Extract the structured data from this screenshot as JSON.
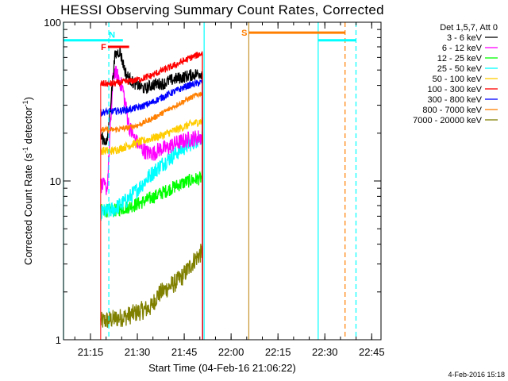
{
  "chart_data": {
    "type": "line",
    "title": "HESSI Observing Summary Count Rates, Corrected",
    "xlabel": "Start Time (04-Feb-16 21:06:22)",
    "ylabel": "Corrected Count Rate (s⁻¹ detector⁻¹)",
    "ylabel_parts": {
      "base": "Corrected Count Rate (s",
      "sup1": "-1",
      "mid": " detector",
      "sup2": "-1",
      "end": ")"
    },
    "timestamp": "4-Feb-2016 15:18",
    "x_unit": "minutes since 21:06:22",
    "xlim": [
      0,
      101.6
    ],
    "ylim": [
      1,
      100
    ],
    "y_scale": "log",
    "x_ticks": [
      {
        "label": "21:15",
        "x": 8.63
      },
      {
        "label": "21:30",
        "x": 23.63
      },
      {
        "label": "21:45",
        "x": 38.63
      },
      {
        "label": "22:00",
        "x": 53.63
      },
      {
        "label": "22:15",
        "x": 68.63
      },
      {
        "label": "22:30",
        "x": 83.63
      },
      {
        "label": "22:45",
        "x": 98.63
      }
    ],
    "y_ticks": [
      {
        "label": "1",
        "y": 1
      },
      {
        "label": "10",
        "y": 10
      },
      {
        "label": "100",
        "y": 100
      }
    ],
    "legend_title": "Det 1,5,7, Att 0",
    "legend_position": "right",
    "grid": false,
    "data_start": 11.9,
    "data_end": 44.5,
    "series": [
      {
        "name": "3 - 6 keV",
        "color": "#000000",
        "noise": 0.09,
        "points": [
          [
            11.9,
            19
          ],
          [
            14,
            17.5
          ],
          [
            15.2,
            33
          ],
          [
            16.5,
            62
          ],
          [
            18,
            66
          ],
          [
            20,
            47
          ],
          [
            22,
            42
          ],
          [
            24,
            40
          ],
          [
            26,
            38
          ],
          [
            28,
            40
          ],
          [
            30,
            41
          ],
          [
            32,
            41
          ],
          [
            34,
            43
          ],
          [
            36,
            44
          ],
          [
            38,
            45
          ],
          [
            40,
            46
          ],
          [
            42,
            47
          ],
          [
            44.5,
            48
          ]
        ]
      },
      {
        "name": "6 - 12 keV",
        "color": "#ff00ff",
        "noise": 0.12,
        "points": [
          [
            11.9,
            9.5
          ],
          [
            14,
            9
          ],
          [
            16,
            50
          ],
          [
            17.5,
            45
          ],
          [
            19,
            38
          ],
          [
            21,
            22
          ],
          [
            23,
            18
          ],
          [
            25,
            16
          ],
          [
            27,
            15
          ],
          [
            29,
            15
          ],
          [
            31,
            16
          ],
          [
            33,
            16
          ],
          [
            35,
            17
          ],
          [
            37,
            17.5
          ],
          [
            39,
            18
          ],
          [
            41,
            18.5
          ],
          [
            44.5,
            19
          ]
        ]
      },
      {
        "name": "12 - 25 keV",
        "color": "#00ff00",
        "noise": 0.1,
        "points": [
          [
            11.9,
            6.5
          ],
          [
            16,
            6.5
          ],
          [
            20,
            6.8
          ],
          [
            24,
            7.2
          ],
          [
            28,
            7.8
          ],
          [
            32,
            8.5
          ],
          [
            36,
            9.3
          ],
          [
            40,
            10
          ],
          [
            44.5,
            10.5
          ]
        ]
      },
      {
        "name": "25 - 50 keV",
        "color": "#00ffff",
        "noise": 0.12,
        "points": [
          [
            11.9,
            6.3
          ],
          [
            16,
            6.6
          ],
          [
            20,
            7.5
          ],
          [
            24,
            9
          ],
          [
            28,
            11
          ],
          [
            32,
            13
          ],
          [
            36,
            15
          ],
          [
            40,
            17
          ],
          [
            44.5,
            19
          ]
        ]
      },
      {
        "name": "50 - 100 keV",
        "color": "#ffcc00",
        "noise": 0.06,
        "points": [
          [
            11.9,
            15.5
          ],
          [
            16,
            15.5
          ],
          [
            20,
            16.5
          ],
          [
            24,
            17.5
          ],
          [
            28,
            18.5
          ],
          [
            32,
            19.5
          ],
          [
            36,
            21
          ],
          [
            40,
            22.5
          ],
          [
            44.5,
            24
          ]
        ]
      },
      {
        "name": "100 - 300 keV",
        "color": "#ff0000",
        "noise": 0.05,
        "points": [
          [
            11.9,
            41
          ],
          [
            16,
            41
          ],
          [
            20,
            42
          ],
          [
            24,
            43.5
          ],
          [
            28,
            46
          ],
          [
            32,
            50
          ],
          [
            36,
            54
          ],
          [
            40,
            59
          ],
          [
            44.5,
            64
          ]
        ]
      },
      {
        "name": "300 - 800 keV",
        "color": "#0000ff",
        "noise": 0.05,
        "points": [
          [
            11.9,
            27
          ],
          [
            16,
            27.5
          ],
          [
            20,
            28
          ],
          [
            24,
            29
          ],
          [
            28,
            31
          ],
          [
            32,
            34
          ],
          [
            36,
            37
          ],
          [
            40,
            40
          ],
          [
            44.5,
            42
          ]
        ]
      },
      {
        "name": "800 - 7000 keV",
        "color": "#ff7f00",
        "noise": 0.04,
        "points": [
          [
            11.9,
            21
          ],
          [
            16,
            21
          ],
          [
            20,
            21.5
          ],
          [
            24,
            22.5
          ],
          [
            28,
            24.5
          ],
          [
            32,
            27
          ],
          [
            36,
            30
          ],
          [
            40,
            33
          ],
          [
            44.5,
            36
          ]
        ]
      },
      {
        "name": "7000 - 20000 keV",
        "color": "#808000",
        "noise": 0.14,
        "points": [
          [
            11.9,
            1.3
          ],
          [
            16,
            1.35
          ],
          [
            20,
            1.4
          ],
          [
            24,
            1.5
          ],
          [
            28,
            1.6
          ],
          [
            30,
            1.9
          ],
          [
            33,
            2.1
          ],
          [
            36,
            2.3
          ],
          [
            38,
            2.5
          ],
          [
            40,
            2.8
          ],
          [
            42,
            3.2
          ],
          [
            44.5,
            3.6
          ]
        ]
      }
    ],
    "vertical_lines": [
      {
        "x": 0.0,
        "color": "#00ffff",
        "dashed": false
      },
      {
        "x": 14.5,
        "color": "#00ffff",
        "dashed": true
      },
      {
        "x": 45.0,
        "color": "#00ffff",
        "dashed": false
      },
      {
        "x": 59.3,
        "color": "#c89632",
        "dashed": false
      },
      {
        "x": 81.5,
        "color": "#00ffff",
        "dashed": false
      },
      {
        "x": 90.1,
        "color": "#ff7f00",
        "dashed": true
      },
      {
        "x": 93.6,
        "color": "#00ffff",
        "dashed": true
      }
    ],
    "interval_bars": [
      {
        "label": "",
        "x0": 0.0,
        "x1": 14.5,
        "y": 77,
        "color": "#00ffff",
        "width": 3
      },
      {
        "label": "N",
        "x0": 14.5,
        "x1": 19.0,
        "y": 77,
        "color": "#00ffff",
        "width": 3
      },
      {
        "label": "F",
        "x0": 14.2,
        "x1": 21.0,
        "y": 70,
        "color": "#ff0000",
        "width": 3
      },
      {
        "label": "S",
        "x0": 59.3,
        "x1": 90.1,
        "y": 86,
        "color": "#ff7f00",
        "width": 3
      },
      {
        "label": "",
        "x0": 81.5,
        "x1": 93.6,
        "y": 77,
        "color": "#00ffff",
        "width": 3
      }
    ]
  }
}
